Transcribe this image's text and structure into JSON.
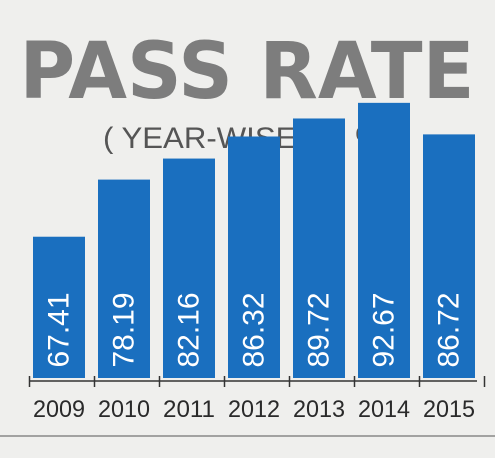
{
  "chart_data": {
    "type": "bar",
    "title": "PASS RATE",
    "subtitle": "( YEAR-WISE) IN %",
    "categories": [
      "2009",
      "2010",
      "2011",
      "2012",
      "2013",
      "2014",
      "2015"
    ],
    "values": [
      67.41,
      78.19,
      82.16,
      86.32,
      89.72,
      92.67,
      86.72
    ],
    "value_labels": [
      "67.41",
      "78.19",
      "82.16",
      "86.32",
      "89.72",
      "92.67",
      "86.72"
    ],
    "bar_color": "#1a6fbf",
    "title_color": "#7d7d7d",
    "background_color": "#efefed"
  }
}
